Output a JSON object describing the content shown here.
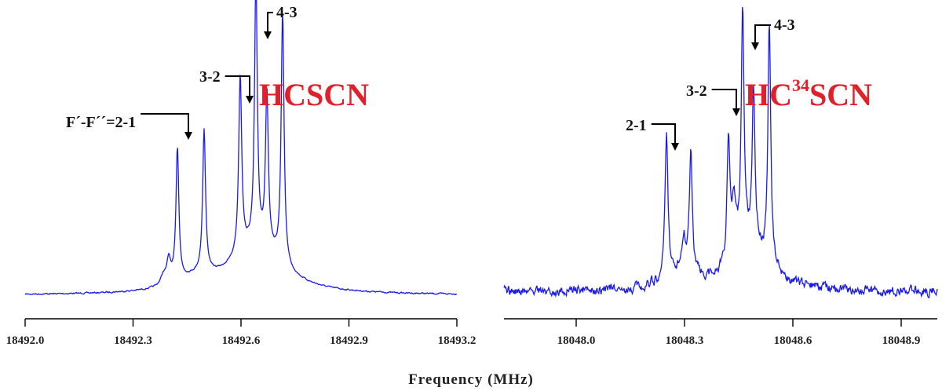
{
  "x_axis_label": "Frequency (MHz)",
  "line_color": "#1a1aee",
  "label_color": "#e0202a",
  "chart_data": [
    {
      "type": "line",
      "species_label": "HCSCN",
      "species_sup": "",
      "species_suffix": "",
      "xlim": [
        18492.0,
        18493.2
      ],
      "xticks": [
        18492.0,
        18492.3,
        18492.6,
        18492.9,
        18493.2
      ],
      "xtick_labels": [
        "18492.0",
        "18492.3",
        "18492.6",
        "18492.9",
        "18493.2"
      ],
      "annotations": [
        {
          "text": "F´-F´´=2-1",
          "x": 18492.46
        },
        {
          "text": "3-2",
          "x": 18492.63
        },
        {
          "text": "4-3",
          "x": 18492.68
        }
      ]
    },
    {
      "type": "line",
      "species_label": "HC",
      "species_sup": "34",
      "species_suffix": "SCN",
      "xlim": [
        18047.8,
        18049.0
      ],
      "xticks": [
        18048.0,
        18048.3,
        18048.6,
        18048.9
      ],
      "xtick_labels": [
        "18048.0",
        "18048.3",
        "18048.6",
        "18048.9"
      ],
      "annotations": [
        {
          "text": "2-1",
          "x": 18048.28
        },
        {
          "text": "3-2",
          "x": 18048.45
        },
        {
          "text": "4-3",
          "x": 18048.5
        }
      ]
    }
  ]
}
